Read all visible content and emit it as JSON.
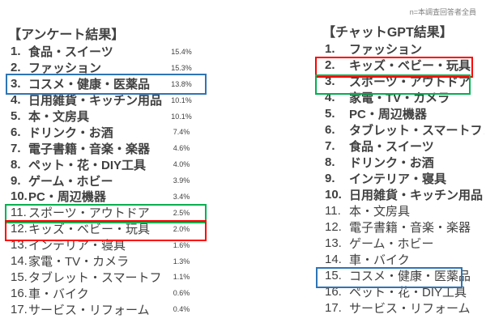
{
  "note": "n=本調査回答者全員",
  "colors": {
    "text": "#404040",
    "note_text": "#7F7F7F",
    "highlight_blue": "#2E75B6",
    "highlight_green": "#00B050",
    "highlight_red": "#FF0000"
  },
  "survey": {
    "title": "【アンケート結果】",
    "items": [
      {
        "num": "1.",
        "label": "食品・スイーツ",
        "pct": "15.4%",
        "bold": true
      },
      {
        "num": "2.",
        "label": "ファッション",
        "pct": "15.3%",
        "bold": true
      },
      {
        "num": "3.",
        "label": "コスメ・健康・医薬品",
        "pct": "13.8%",
        "bold": true
      },
      {
        "num": "4.",
        "label": "日用雑貨・キッチン用品",
        "pct": "10.1%",
        "bold": true
      },
      {
        "num": "5.",
        "label": "本・文房具",
        "pct": "10.1%",
        "bold": true
      },
      {
        "num": "6.",
        "label": "ドリンク・お酒",
        "pct": "7.4%",
        "bold": true
      },
      {
        "num": "7.",
        "label": "電子書籍・音楽・楽器",
        "pct": "4.6%",
        "bold": true
      },
      {
        "num": "8.",
        "label": "ペット・花・DIY工具",
        "pct": "4.0%",
        "bold": true
      },
      {
        "num": "9.",
        "label": "ゲーム・ホビー",
        "pct": "3.9%",
        "bold": true
      },
      {
        "num": "10.",
        "label": "PC・周辺機器",
        "pct": "3.4%",
        "bold": true
      },
      {
        "num": "11.",
        "label": "スポーツ・アウトドア",
        "pct": "2.5%",
        "bold": false
      },
      {
        "num": "12.",
        "label": "キッズ・ベビー・玩具",
        "pct": "2.0%",
        "bold": false
      },
      {
        "num": "13.",
        "label": "インテリア・寝具",
        "pct": "1.6%",
        "bold": false
      },
      {
        "num": "14.",
        "label": "家電・TV・カメラ",
        "pct": "1.3%",
        "bold": false
      },
      {
        "num": "15.",
        "label": "タブレット・スマートフォン",
        "pct": "1.1%",
        "bold": false
      },
      {
        "num": "16.",
        "label": "車・バイク",
        "pct": "0.6%",
        "bold": false
      },
      {
        "num": "17.",
        "label": "サービス・リフォーム",
        "pct": "0.4%",
        "bold": false
      }
    ]
  },
  "chatgpt": {
    "title": "【チャットGPT結果】",
    "items": [
      {
        "num": "1.",
        "label": "ファッション",
        "bold": true
      },
      {
        "num": "2.",
        "label": "キッズ・ベビー・玩具",
        "bold": true
      },
      {
        "num": "3.",
        "label": "スポーツ・アウトドア",
        "bold": true
      },
      {
        "num": "4.",
        "label": "家電・TV・カメラ",
        "bold": true
      },
      {
        "num": "5.",
        "label": "PC・周辺機器",
        "bold": true
      },
      {
        "num": "6.",
        "label": "タブレット・スマートフォン",
        "bold": true
      },
      {
        "num": "7.",
        "label": "食品・スイーツ",
        "bold": true
      },
      {
        "num": "8.",
        "label": "ドリンク・お酒",
        "bold": true
      },
      {
        "num": "9.",
        "label": "インテリア・寝具",
        "bold": true
      },
      {
        "num": "10.",
        "label": "日用雑貨・キッチン用品",
        "bold": true
      },
      {
        "num": "11.",
        "label": "本・文房具",
        "bold": false
      },
      {
        "num": "12.",
        "label": "電子書籍・音楽・楽器",
        "bold": false
      },
      {
        "num": "13.",
        "label": "ゲーム・ホビー",
        "bold": false
      },
      {
        "num": "14.",
        "label": "車・バイク",
        "bold": false
      },
      {
        "num": "15.",
        "label": "コスメ・健康・医薬品",
        "bold": false
      },
      {
        "num": "16.",
        "label": "ペット・花・DIY工具",
        "bold": false
      },
      {
        "num": "17.",
        "label": "サービス・リフォーム",
        "bold": false
      }
    ]
  },
  "highlights": [
    {
      "color": "#2E75B6",
      "category": "コスメ・健康・医薬品",
      "survey_rank": 3,
      "chatgpt_rank": 15
    },
    {
      "color": "#00B050",
      "category": "スポーツ・アウトドア",
      "survey_rank": 11,
      "chatgpt_rank": 3
    },
    {
      "color": "#FF0000",
      "category": "キッズ・ベビー・玩具",
      "survey_rank": 12,
      "chatgpt_rank": 2
    }
  ]
}
